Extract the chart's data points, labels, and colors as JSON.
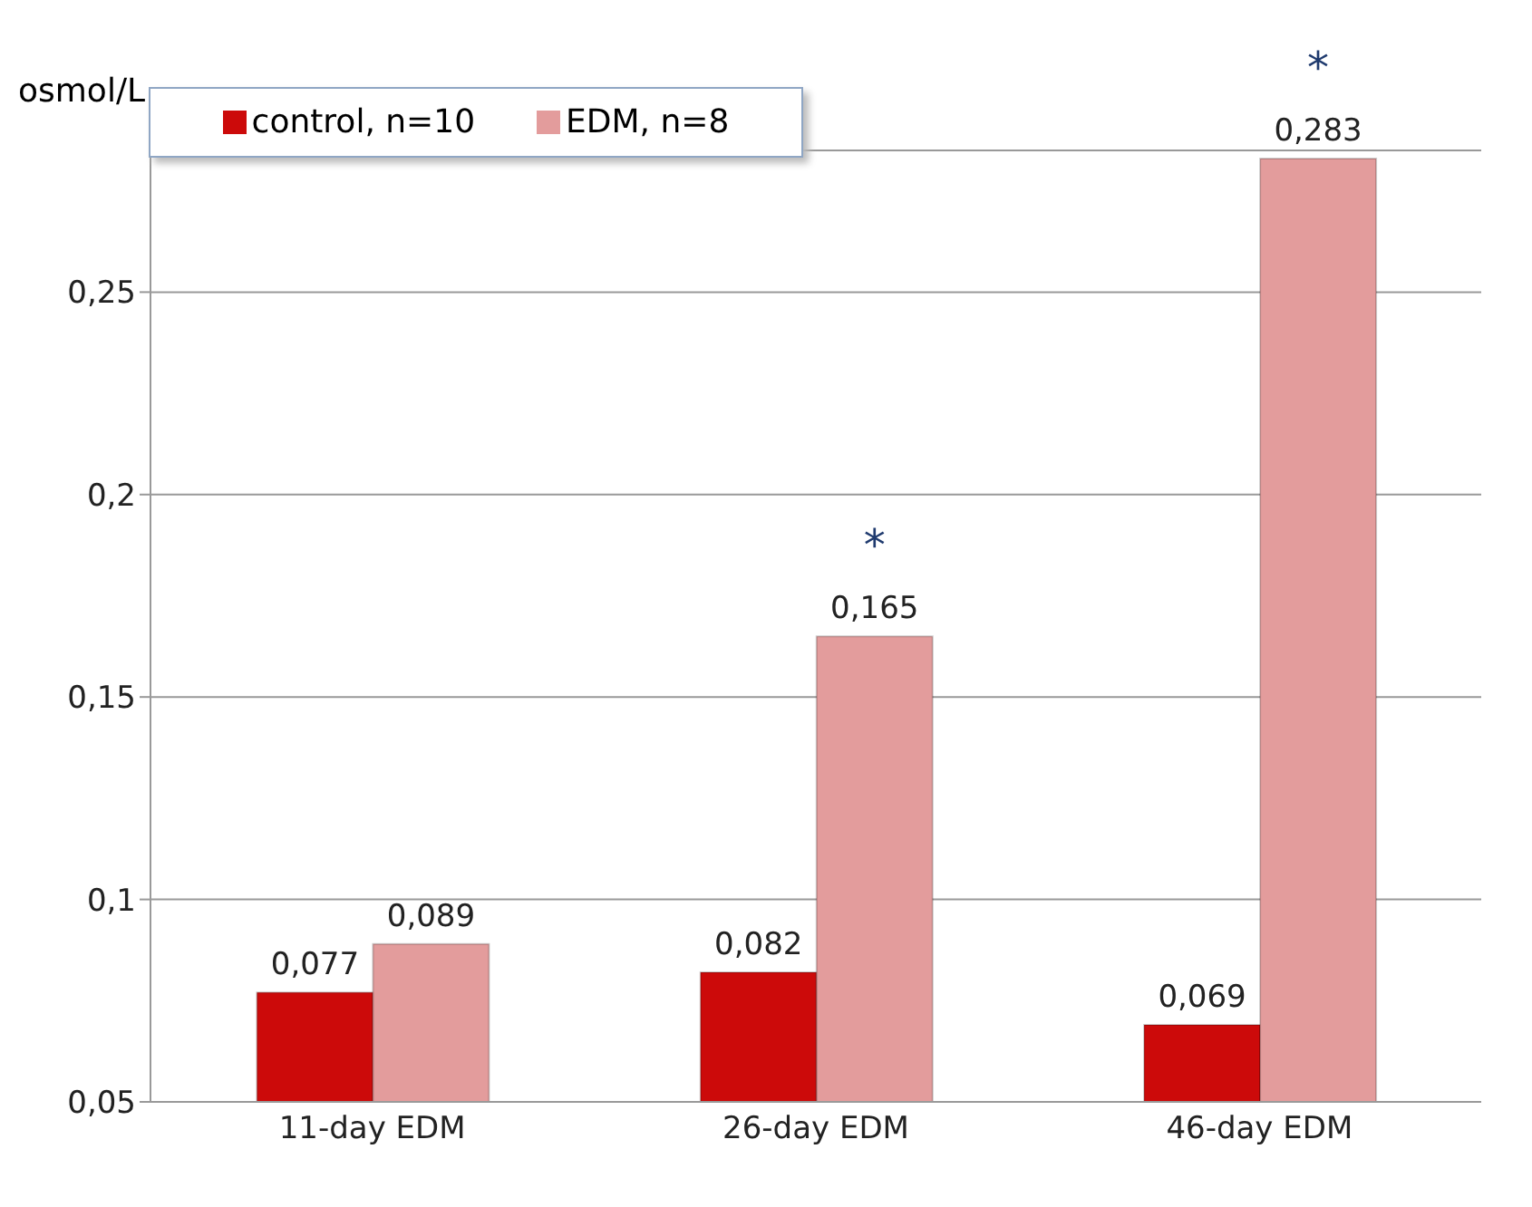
{
  "chart_data": {
    "type": "bar",
    "ylabel": "osmol/L",
    "categories": [
      "11-day EDM",
      "26-day EDM",
      "46-day EDM"
    ],
    "series": [
      {
        "name": "control, n=10",
        "color": "#cc0a0a",
        "values": [
          0.077,
          0.082,
          0.069
        ],
        "value_labels": [
          "0,077",
          "0,082",
          "0,069"
        ]
      },
      {
        "name": "EDM, n=8",
        "color": "#e39c9c",
        "values": [
          0.089,
          0.165,
          0.283
        ],
        "value_labels": [
          "0,089",
          "0,165",
          "0,283"
        ]
      }
    ],
    "ylim": [
      0.05,
      0.285
    ],
    "yticks": [
      {
        "value": 0.05,
        "label": "0,05"
      },
      {
        "value": 0.1,
        "label": "0,1"
      },
      {
        "value": 0.15,
        "label": "0,15"
      },
      {
        "value": 0.2,
        "label": "0,2"
      },
      {
        "value": 0.25,
        "label": "0,25"
      }
    ],
    "annotations": [
      {
        "text": "*",
        "x": "26-day EDM",
        "y": 0.165
      },
      {
        "text": "*",
        "x": "46-day EDM",
        "y": 0.283
      }
    ],
    "grid": "y",
    "legend": "top"
  }
}
